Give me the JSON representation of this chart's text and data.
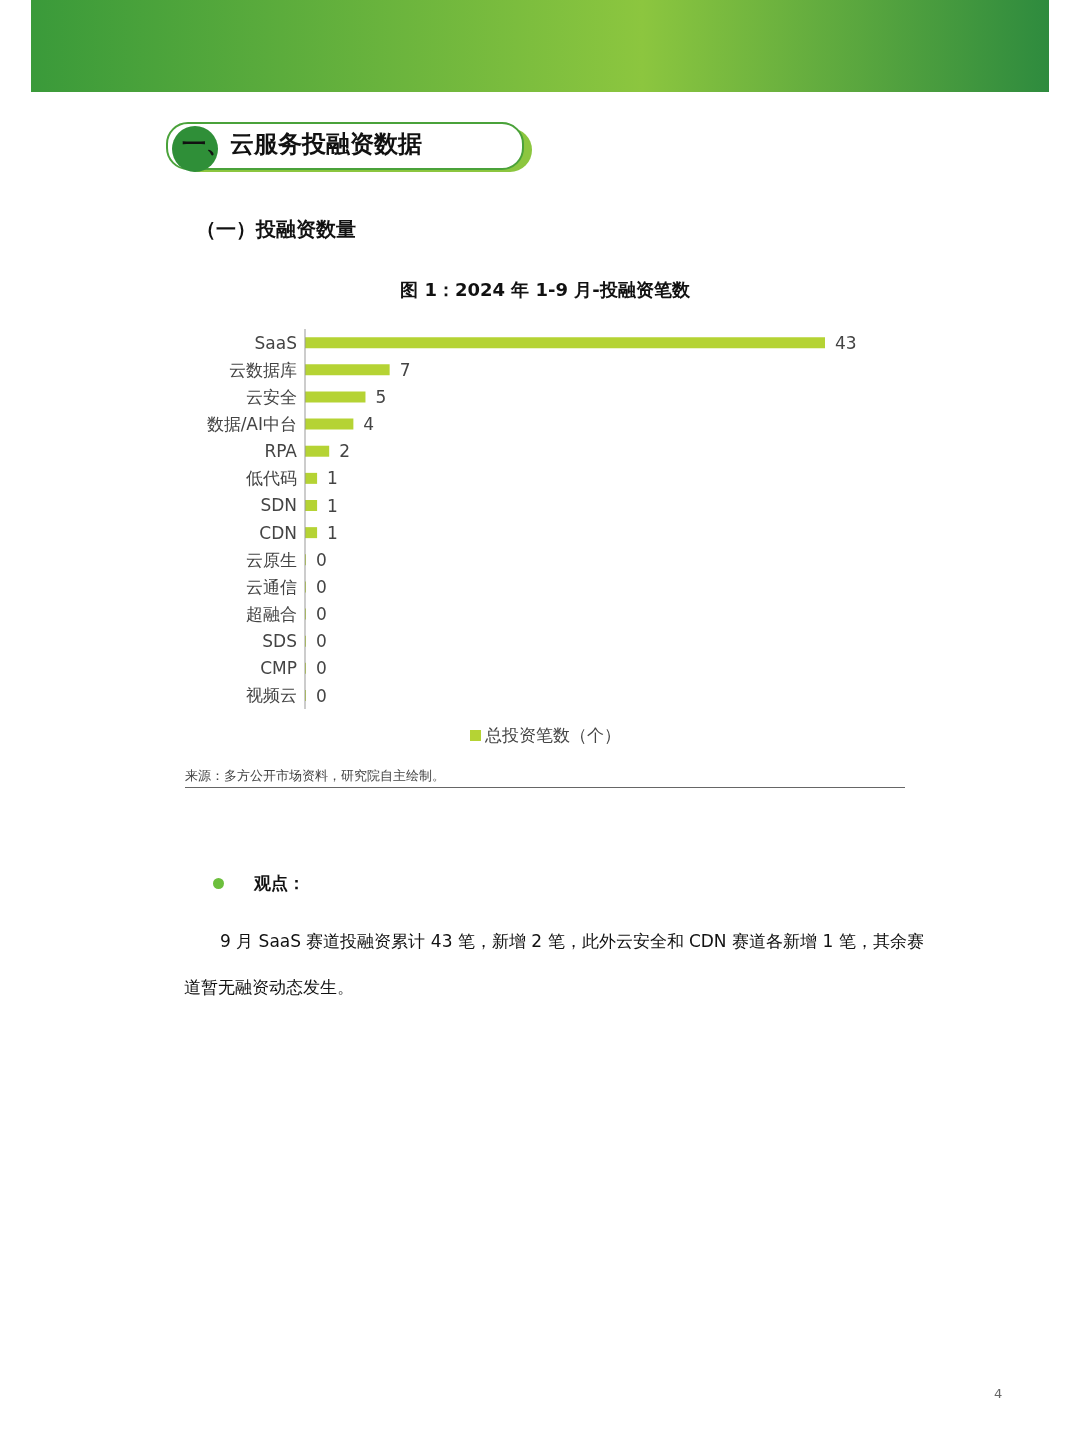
{
  "chart_data": {
    "type": "bar",
    "orientation": "horizontal",
    "title": "图 1：2024 年 1-9 月-投融资笔数",
    "categories": [
      "SaaS",
      "云数据库",
      "云安全",
      "数据/AI中台",
      "RPA",
      "低代码",
      "SDN",
      "CDN",
      "云原生",
      "云通信",
      "超融合",
      "SDS",
      "CMP",
      "视频云"
    ],
    "series": [
      {
        "name": "总投资笔数（个）",
        "color": "#b5d334",
        "values": [
          43,
          7,
          5,
          4,
          2,
          1,
          1,
          1,
          0,
          0,
          0,
          0,
          0,
          0
        ]
      }
    ],
    "data_labels": true,
    "legend": "bottom",
    "grid": false,
    "annotations": [
      "一、云服务投融资数据",
      "（一）投融资数量",
      "来源：多方公开市场资料，研究院自主绘制。",
      "观点：",
      "9 月 SaaS 赛道投融资累计 43 笔，新增 2 笔，此外云安全和 CDN 赛道各新增 1 笔，其余赛道暂无融资动态发生。",
      "4"
    ]
  }
}
